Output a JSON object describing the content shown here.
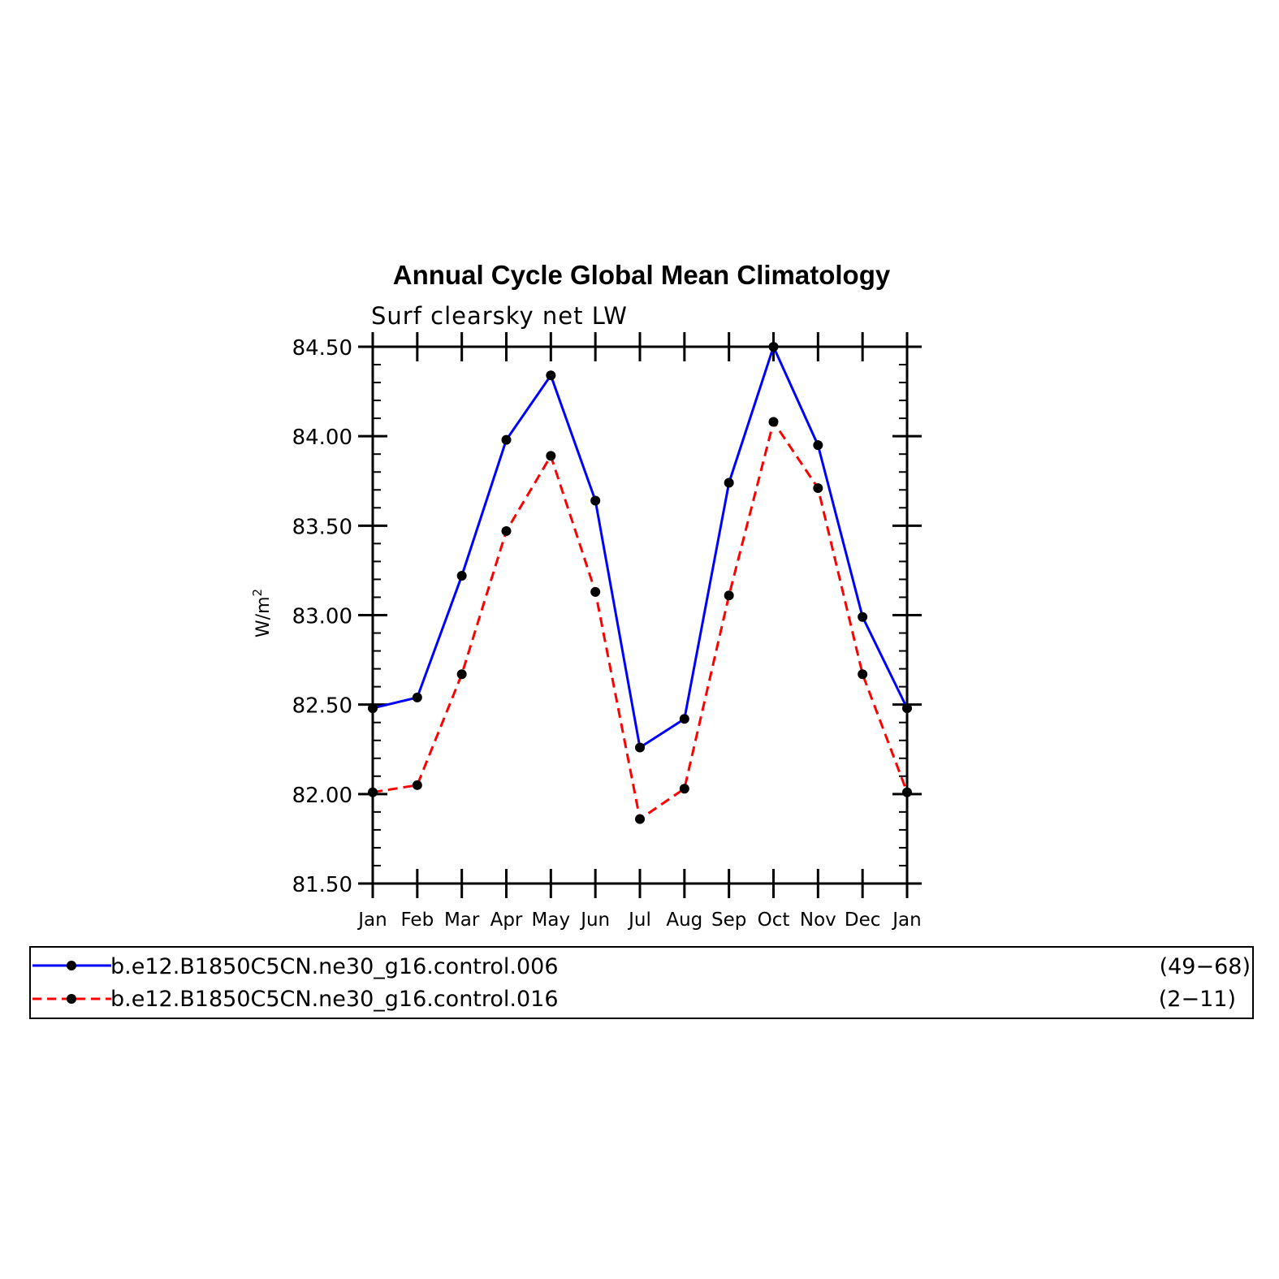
{
  "chart_data": {
    "type": "line",
    "title": "Annual Cycle Global Mean Climatology",
    "subtitle": "Surf clearsky net LW",
    "ylabel": "W/m",
    "ylabel_superscript": "2",
    "xlabel": "",
    "categories": [
      "Jan",
      "Feb",
      "Mar",
      "Apr",
      "May",
      "Jun",
      "Jul",
      "Aug",
      "Sep",
      "Oct",
      "Nov",
      "Dec",
      "Jan"
    ],
    "ylim": [
      81.5,
      84.5
    ],
    "yticks": [
      "81.50",
      "82.00",
      "82.50",
      "83.00",
      "83.50",
      "84.00",
      "84.50"
    ],
    "grid": false,
    "legend_position": "bottom",
    "series": [
      {
        "name": "b.e12.B1850C5CN.ne30_g16.control.006",
        "years": "(49−68)",
        "color": "#0000ff",
        "dash": "solid",
        "values": [
          82.48,
          82.54,
          83.22,
          83.98,
          84.34,
          83.64,
          82.26,
          82.42,
          83.74,
          84.5,
          83.95,
          82.99,
          82.48
        ]
      },
      {
        "name": "b.e12.B1850C5CN.ne30_g16.control.016",
        "years": "(2−11)",
        "color": "#ff0000",
        "dash": "dashed",
        "values": [
          82.01,
          82.05,
          82.67,
          83.47,
          83.89,
          83.13,
          81.86,
          82.03,
          83.11,
          84.08,
          83.71,
          82.67,
          82.01
        ]
      }
    ]
  }
}
